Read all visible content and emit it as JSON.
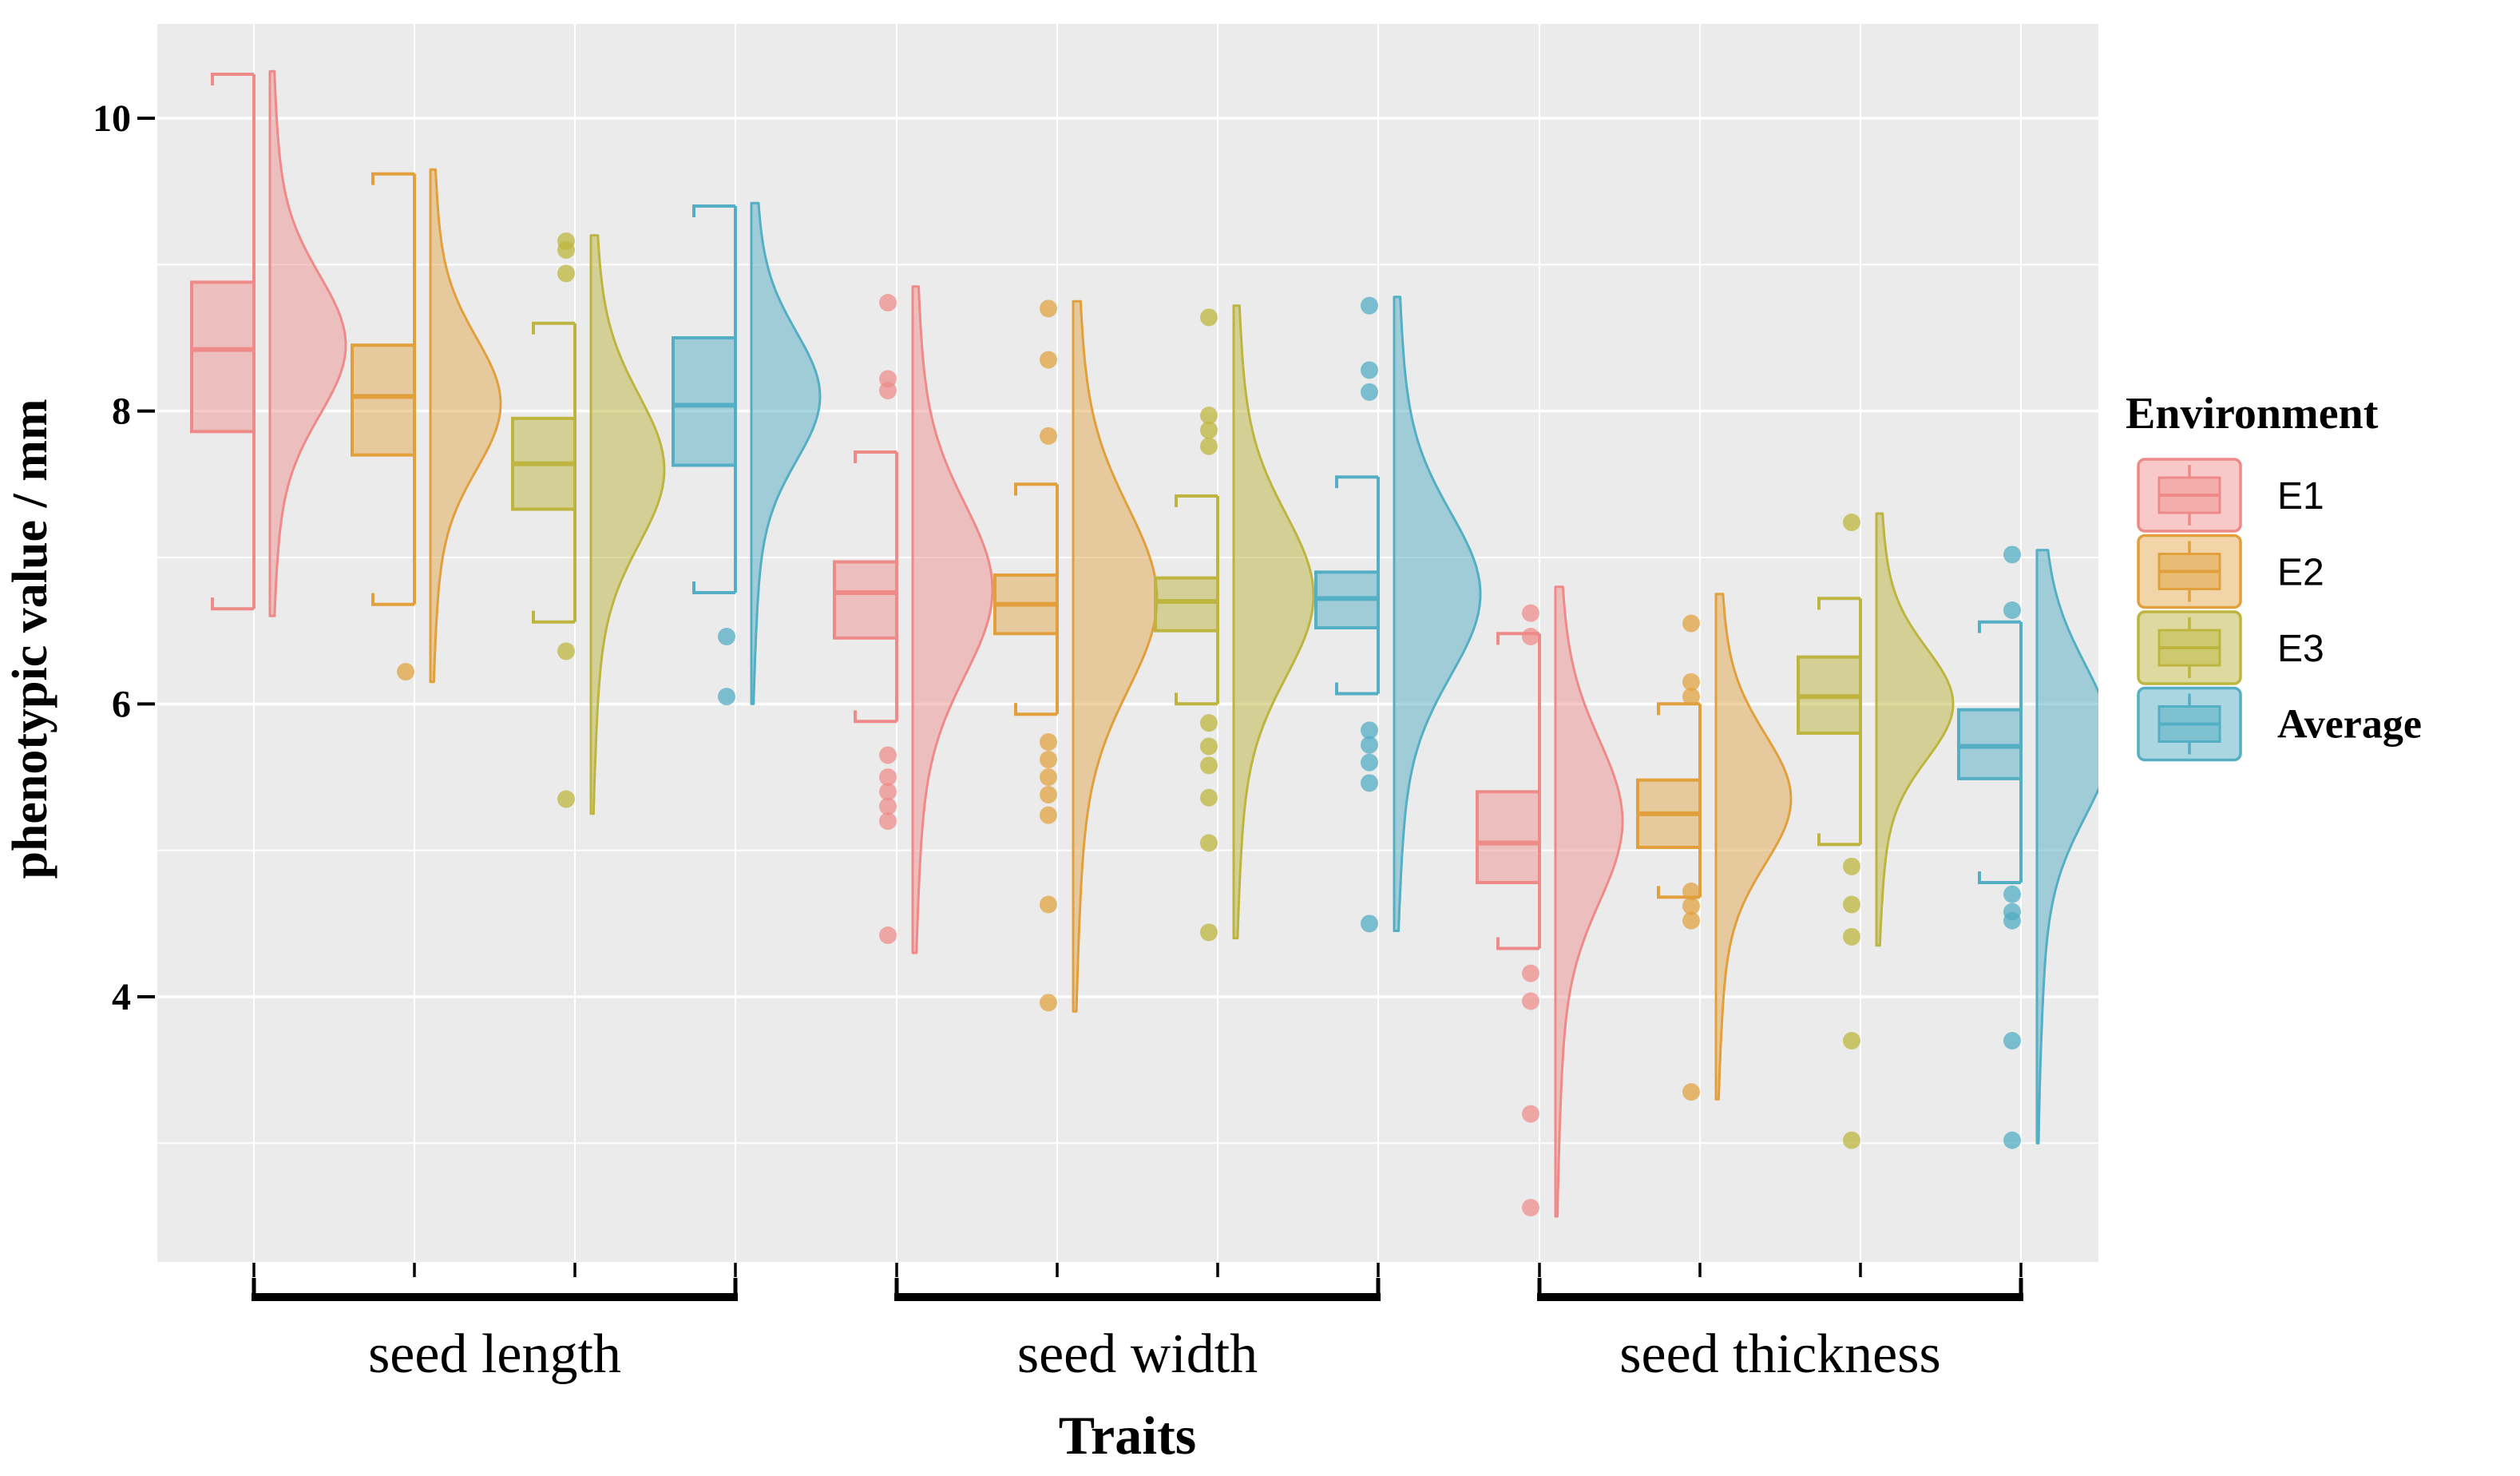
{
  "figure": {
    "background": "#ffffff",
    "panel_background": "#ebebeb",
    "grid_color": "#ffffff",
    "text_color": "#000000"
  },
  "chart_data": {
    "type": "raincloud (half-violin + boxplot + jitter points)",
    "title": "",
    "xlabel": "Traits",
    "ylabel": "phenotypic value / mm",
    "y_ticks": [
      10,
      8,
      6,
      4
    ],
    "y_minor_gridlines": [
      9,
      7,
      5,
      3
    ],
    "ylim": [
      2.2,
      10.65
    ],
    "grid": "on",
    "legend_position": "right",
    "legend": {
      "title": "Environment",
      "entries": [
        {
          "label": "E1",
          "stroke": "#ee8a88",
          "fill": "rgba(238,138,136,0.45)"
        },
        {
          "label": "E2",
          "stroke": "#e1a03c",
          "fill": "rgba(225,160,60,0.45)"
        },
        {
          "label": "E3",
          "stroke": "#bdb53f",
          "fill": "rgba(189,181,63,0.50)"
        },
        {
          "label": "Average",
          "stroke": "#54aec4",
          "fill": "rgba(84,174,196,0.50)"
        }
      ]
    },
    "env_colors": {
      "E1": {
        "stroke": "#ee8a88",
        "fill": "rgba(238,138,136,0.45)",
        "point": "rgba(238,138,136,0.72)"
      },
      "E2": {
        "stroke": "#e1a03c",
        "fill": "rgba(225,160,60,0.45)",
        "point": "rgba(225,160,60,0.72)"
      },
      "E3": {
        "stroke": "#bdb53f",
        "fill": "rgba(189,181,63,0.50)",
        "point": "rgba(189,181,63,0.75)"
      },
      "Average": {
        "stroke": "#54aec4",
        "fill": "rgba(84,174,196,0.50)",
        "point": "rgba(84,174,196,0.75)"
      }
    },
    "groups": [
      {
        "trait": "seed length",
        "series": [
          {
            "env": "E1",
            "box": [
              7.86,
              8.88
            ],
            "median": 8.42,
            "whiskers": [
              6.65,
              10.3
            ],
            "violin": {
              "min": 6.6,
              "max": 10.32,
              "peak": 8.45,
              "halfwidth": 95
            },
            "points_above": [],
            "points_below": []
          },
          {
            "env": "E2",
            "box": [
              7.7,
              8.45
            ],
            "median": 8.1,
            "whiskers": [
              6.68,
              9.62
            ],
            "violin": {
              "min": 6.15,
              "max": 9.65,
              "peak": 8.05,
              "halfwidth": 88
            },
            "points_above": [],
            "points_below": [
              6.22
            ]
          },
          {
            "env": "E3",
            "box": [
              7.33,
              7.95
            ],
            "median": 7.64,
            "whiskers": [
              6.56,
              8.6
            ],
            "violin": {
              "min": 5.25,
              "max": 9.2,
              "peak": 7.6,
              "halfwidth": 92
            },
            "points_above": [
              9.16,
              9.1,
              8.94
            ],
            "points_below": [
              6.36,
              5.35
            ]
          },
          {
            "env": "Average",
            "box": [
              7.63,
              8.5
            ],
            "median": 8.04,
            "whiskers": [
              6.76,
              9.4
            ],
            "violin": {
              "min": 6.0,
              "max": 9.42,
              "peak": 8.1,
              "halfwidth": 86
            },
            "points_above": [],
            "points_below": [
              6.46,
              6.05
            ]
          }
        ]
      },
      {
        "trait": "seed width",
        "series": [
          {
            "env": "E1",
            "box": [
              6.45,
              6.97
            ],
            "median": 6.76,
            "whiskers": [
              5.88,
              7.72
            ],
            "violin": {
              "min": 4.3,
              "max": 8.85,
              "peak": 6.78,
              "halfwidth": 100
            },
            "points_above": [
              8.74,
              8.22,
              8.14
            ],
            "points_below": [
              5.65,
              5.5,
              5.4,
              5.3,
              5.2,
              4.42
            ]
          },
          {
            "env": "E2",
            "box": [
              6.48,
              6.88
            ],
            "median": 6.68,
            "whiskers": [
              5.93,
              7.5
            ],
            "violin": {
              "min": 3.9,
              "max": 8.75,
              "peak": 6.72,
              "halfwidth": 105
            },
            "points_above": [
              8.7,
              8.35,
              7.83
            ],
            "points_below": [
              5.74,
              5.62,
              5.5,
              5.38,
              5.24,
              4.63,
              3.96
            ]
          },
          {
            "env": "E3",
            "box": [
              6.5,
              6.86
            ],
            "median": 6.7,
            "whiskers": [
              6.0,
              7.42
            ],
            "violin": {
              "min": 4.4,
              "max": 8.72,
              "peak": 6.74,
              "halfwidth": 100
            },
            "points_above": [
              8.64,
              7.97,
              7.87,
              7.76
            ],
            "points_below": [
              5.87,
              5.71,
              5.58,
              5.36,
              5.05,
              4.44
            ]
          },
          {
            "env": "Average",
            "box": [
              6.52,
              6.9
            ],
            "median": 6.72,
            "whiskers": [
              6.07,
              7.55
            ],
            "violin": {
              "min": 4.45,
              "max": 8.78,
              "peak": 6.75,
              "halfwidth": 108
            },
            "points_above": [
              8.72,
              8.28,
              8.13
            ],
            "points_below": [
              5.82,
              5.72,
              5.6,
              5.46,
              4.5
            ]
          }
        ]
      },
      {
        "trait": "seed thickness",
        "series": [
          {
            "env": "E1",
            "box": [
              4.78,
              5.4
            ],
            "median": 5.05,
            "whiskers": [
              4.33,
              6.48
            ],
            "violin": {
              "min": 2.5,
              "max": 6.8,
              "peak": 5.2,
              "halfwidth": 84
            },
            "points_above": [
              6.62,
              6.46
            ],
            "points_below": [
              4.16,
              3.97,
              3.2,
              2.56
            ]
          },
          {
            "env": "E2",
            "box": [
              5.02,
              5.48
            ],
            "median": 5.25,
            "whiskers": [
              4.68,
              6.0
            ],
            "violin": {
              "min": 3.3,
              "max": 6.75,
              "peak": 5.35,
              "halfwidth": 94
            },
            "points_above": [
              6.55,
              6.15,
              6.05
            ],
            "points_below": [
              4.72,
              4.62,
              4.52,
              3.35
            ]
          },
          {
            "env": "E3",
            "box": [
              5.8,
              6.32
            ],
            "median": 6.05,
            "whiskers": [
              5.04,
              6.72
            ],
            "violin": {
              "min": 4.35,
              "max": 7.3,
              "peak": 6.0,
              "halfwidth": 96
            },
            "points_above": [
              7.24
            ],
            "points_below": [
              4.89,
              4.63,
              4.41,
              3.7,
              3.02
            ]
          },
          {
            "env": "Average",
            "box": [
              5.49,
              5.96
            ],
            "median": 5.71,
            "whiskers": [
              4.78,
              6.56
            ],
            "violin": {
              "min": 3.0,
              "max": 7.05,
              "peak": 5.75,
              "halfwidth": 92
            },
            "points_above": [
              7.02,
              6.64
            ],
            "points_below": [
              4.7,
              4.58,
              4.52,
              3.7,
              3.02
            ]
          }
        ]
      }
    ]
  }
}
